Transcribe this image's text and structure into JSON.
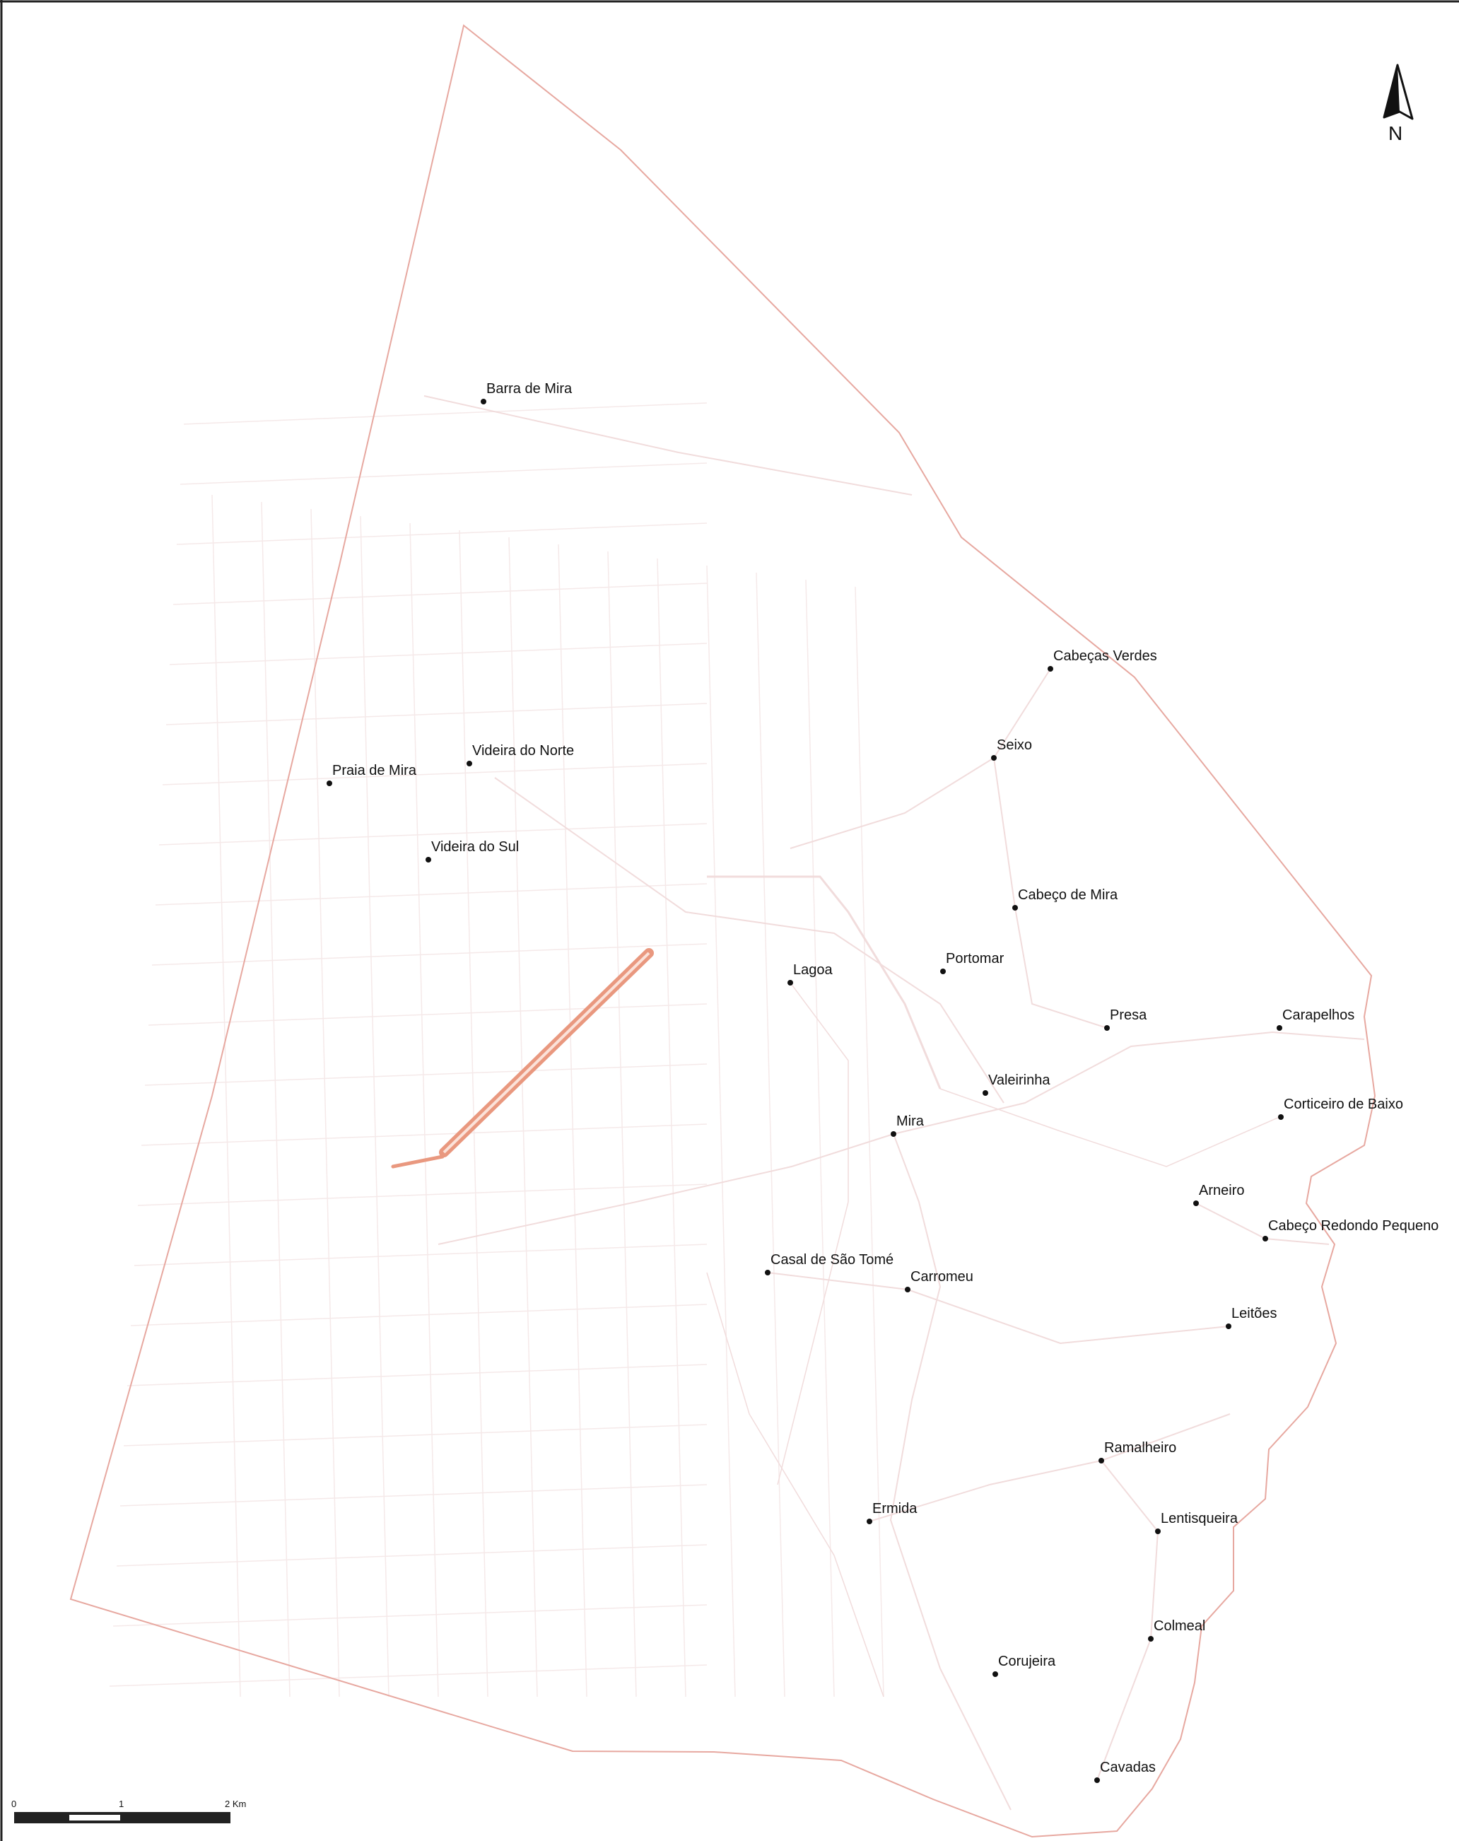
{
  "map": {
    "north_label": "N",
    "colors": {
      "boundary": "#e7a8a0",
      "roads": "#f1dcdc",
      "road_grid": "#f5e9e9",
      "highlight": "#e9987f",
      "marker": "#111111"
    },
    "places": [
      {
        "id": "barra-de-mira",
        "name": "Barra de Mira"
      },
      {
        "id": "cabecas-verdes",
        "name": "Cabeças Verdes"
      },
      {
        "id": "seixo",
        "name": "Seixo"
      },
      {
        "id": "videira-do-norte",
        "name": "Videira do Norte"
      },
      {
        "id": "praia-de-mira",
        "name": "Praia de Mira"
      },
      {
        "id": "videira-do-sul",
        "name": "Videira do Sul"
      },
      {
        "id": "cabeco-de-mira",
        "name": "Cabeço de Mira"
      },
      {
        "id": "portomar",
        "name": "Portomar"
      },
      {
        "id": "lagoa",
        "name": "Lagoa"
      },
      {
        "id": "presa",
        "name": "Presa"
      },
      {
        "id": "carapelhos",
        "name": "Carapelhos"
      },
      {
        "id": "valeirinha",
        "name": "Valeirinha"
      },
      {
        "id": "corticeiro-de-baixo",
        "name": "Corticeiro de Baixo"
      },
      {
        "id": "mira",
        "name": "Mira"
      },
      {
        "id": "arneiro",
        "name": "Arneiro"
      },
      {
        "id": "cabeco-redondo-pequeno",
        "name": "Cabeço Redondo Pequeno"
      },
      {
        "id": "casal-de-sao-tome",
        "name": "Casal de São Tomé"
      },
      {
        "id": "carromeu",
        "name": "Carromeu"
      },
      {
        "id": "leitoes",
        "name": "Leitões"
      },
      {
        "id": "ramalheiro",
        "name": "Ramalheiro"
      },
      {
        "id": "ermida",
        "name": "Ermida"
      },
      {
        "id": "lentisqueira",
        "name": "Lentisqueira"
      },
      {
        "id": "colmeal",
        "name": "Colmeal"
      },
      {
        "id": "corujeira",
        "name": "Corujeira"
      },
      {
        "id": "cavadas",
        "name": "Cavadas"
      }
    ],
    "scale_bar": {
      "labels": [
        "0",
        "1",
        "2 Km"
      ]
    }
  }
}
